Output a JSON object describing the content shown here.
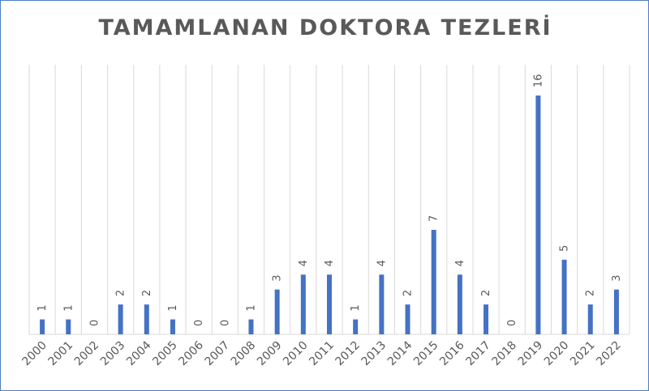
{
  "chart_data": {
    "type": "bar",
    "title": "TAMAMLANAN DOKTORA TEZLERİ",
    "categories": [
      "2000",
      "2001",
      "2002",
      "2003",
      "2004",
      "2005",
      "2006",
      "2007",
      "2008",
      "2009",
      "2010",
      "2011",
      "2012",
      "2013",
      "2014",
      "2015",
      "2016",
      "2017",
      "2018",
      "2019",
      "2020",
      "2021",
      "2022"
    ],
    "values": [
      1,
      1,
      0,
      2,
      2,
      1,
      0,
      0,
      1,
      3,
      4,
      4,
      1,
      4,
      2,
      7,
      4,
      2,
      0,
      16,
      5,
      2,
      3
    ],
    "ylim": [
      0,
      16
    ],
    "grid": "vertical",
    "legend": "none",
    "bar_color": "#4472c4",
    "data_labels": true
  }
}
